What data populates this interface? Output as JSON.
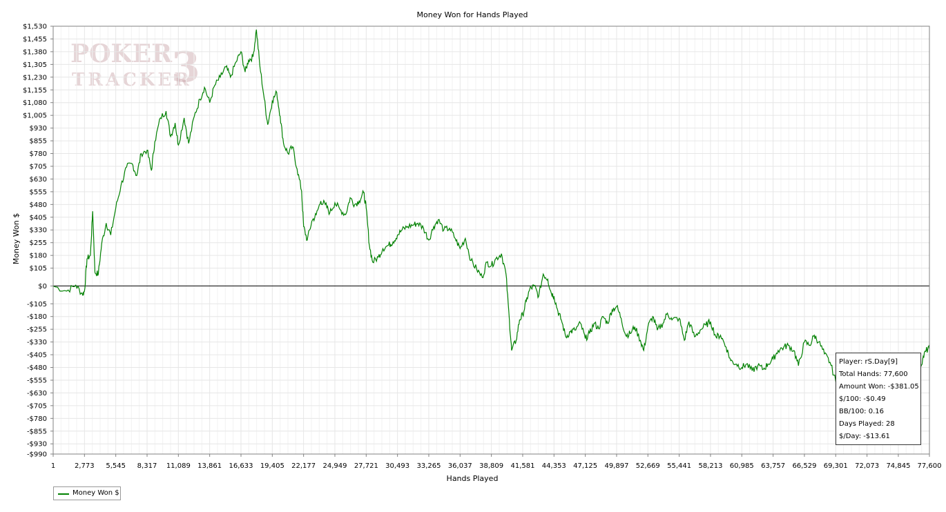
{
  "chart_data": {
    "type": "line",
    "title": "Money Won for Hands Played",
    "xlabel": "Hands Played",
    "ylabel": "Money Won $",
    "xlim": [
      1,
      77600
    ],
    "ylim": [
      -990,
      1530
    ],
    "x_ticks": [
      1,
      2773,
      5545,
      8317,
      11089,
      13861,
      16633,
      19405,
      22177,
      24949,
      27721,
      30493,
      33265,
      36037,
      38809,
      41581,
      44353,
      47125,
      49897,
      52669,
      55441,
      58213,
      60985,
      63757,
      66529,
      69301,
      72073,
      74845,
      77600
    ],
    "x_tick_labels": [
      "1",
      "2,773",
      "5,545",
      "8,317",
      "11,089",
      "13,861",
      "16,633",
      "19,405",
      "22,177",
      "24,949",
      "27,721",
      "30,493",
      "33,265",
      "36,037",
      "38,809",
      "41,581",
      "44,353",
      "47,125",
      "49,897",
      "52,669",
      "55,441",
      "58,213",
      "60,985",
      "63,757",
      "66,529",
      "69,301",
      "72,073",
      "74,845",
      "77,600"
    ],
    "y_ticks": [
      1530,
      1455,
      1380,
      1305,
      1230,
      1155,
      1080,
      1005,
      930,
      855,
      780,
      705,
      630,
      555,
      480,
      405,
      330,
      255,
      180,
      105,
      0,
      -105,
      -180,
      -255,
      -330,
      -405,
      -480,
      -555,
      -630,
      -705,
      -780,
      -855,
      -930,
      -990
    ],
    "y_tick_labels": [
      "$1,530",
      "$1,455",
      "$1,380",
      "$1,305",
      "$1,230",
      "$1,155",
      "$1,080",
      "$1,005",
      "$930",
      "$855",
      "$780",
      "$705",
      "$630",
      "$555",
      "$480",
      "$405",
      "$330",
      "$255",
      "$180",
      "$105",
      "$0",
      "-$105",
      "-$180",
      "-$255",
      "-$330",
      "-$405",
      "-$480",
      "-$555",
      "-$630",
      "-$705",
      "-$780",
      "-$855",
      "-$930",
      "-$990"
    ],
    "grid": true,
    "legend_position": "bottom-left",
    "series": [
      {
        "name": "Money Won $",
        "color": "#008000",
        "points": [
          [
            1,
            0
          ],
          [
            1200,
            -30
          ],
          [
            2000,
            5
          ],
          [
            2600,
            -50
          ],
          [
            2773,
            -30
          ],
          [
            3000,
            160
          ],
          [
            3300,
            180
          ],
          [
            3500,
            440
          ],
          [
            3700,
            80
          ],
          [
            4000,
            70
          ],
          [
            4300,
            250
          ],
          [
            4700,
            370
          ],
          [
            5100,
            300
          ],
          [
            5545,
            460
          ],
          [
            6000,
            590
          ],
          [
            6500,
            700
          ],
          [
            7000,
            720
          ],
          [
            7400,
            650
          ],
          [
            7800,
            780
          ],
          [
            8317,
            800
          ],
          [
            8700,
            680
          ],
          [
            9000,
            850
          ],
          [
            9500,
            990
          ],
          [
            10000,
            1030
          ],
          [
            10400,
            880
          ],
          [
            10800,
            960
          ],
          [
            11089,
            830
          ],
          [
            11600,
            990
          ],
          [
            12000,
            840
          ],
          [
            12500,
            1000
          ],
          [
            13000,
            1100
          ],
          [
            13400,
            1170
          ],
          [
            13861,
            1080
          ],
          [
            14300,
            1180
          ],
          [
            14800,
            1230
          ],
          [
            15300,
            1290
          ],
          [
            15700,
            1230
          ],
          [
            16200,
            1320
          ],
          [
            16633,
            1380
          ],
          [
            17000,
            1260
          ],
          [
            17300,
            1330
          ],
          [
            17700,
            1350
          ],
          [
            18000,
            1510
          ],
          [
            18300,
            1300
          ],
          [
            18700,
            1100
          ],
          [
            19000,
            950
          ],
          [
            19405,
            1090
          ],
          [
            19800,
            1140
          ],
          [
            20100,
            1000
          ],
          [
            20400,
            840
          ],
          [
            20800,
            780
          ],
          [
            21200,
            820
          ],
          [
            21600,
            690
          ],
          [
            22000,
            560
          ],
          [
            22177,
            350
          ],
          [
            22500,
            270
          ],
          [
            22900,
            380
          ],
          [
            23300,
            420
          ],
          [
            23700,
            500
          ],
          [
            24100,
            480
          ],
          [
            24500,
            430
          ],
          [
            24949,
            490
          ],
          [
            25400,
            450
          ],
          [
            25900,
            420
          ],
          [
            26300,
            520
          ],
          [
            26700,
            480
          ],
          [
            27100,
            500
          ],
          [
            27500,
            550
          ],
          [
            27721,
            460
          ],
          [
            28000,
            240
          ],
          [
            28300,
            140
          ],
          [
            28800,
            170
          ],
          [
            29200,
            220
          ],
          [
            29700,
            240
          ],
          [
            30100,
            260
          ],
          [
            30493,
            300
          ],
          [
            30900,
            330
          ],
          [
            31400,
            350
          ],
          [
            31900,
            360
          ],
          [
            32300,
            370
          ],
          [
            32800,
            340
          ],
          [
            33265,
            270
          ],
          [
            33700,
            350
          ],
          [
            34100,
            390
          ],
          [
            34600,
            330
          ],
          [
            35100,
            340
          ],
          [
            35600,
            280
          ],
          [
            36037,
            220
          ],
          [
            36500,
            280
          ],
          [
            37000,
            150
          ],
          [
            37500,
            100
          ],
          [
            38000,
            50
          ],
          [
            38400,
            140
          ],
          [
            38809,
            120
          ],
          [
            39200,
            160
          ],
          [
            39700,
            190
          ],
          [
            40100,
            70
          ],
          [
            40400,
            -200
          ],
          [
            40600,
            -380
          ],
          [
            41000,
            -320
          ],
          [
            41300,
            -200
          ],
          [
            41581,
            -170
          ],
          [
            41900,
            -90
          ],
          [
            42200,
            -20
          ],
          [
            42600,
            0
          ],
          [
            43000,
            -60
          ],
          [
            43400,
            70
          ],
          [
            43800,
            40
          ],
          [
            44100,
            -40
          ],
          [
            44353,
            -60
          ],
          [
            44700,
            -150
          ],
          [
            45000,
            -200
          ],
          [
            45400,
            -300
          ],
          [
            45800,
            -270
          ],
          [
            46200,
            -260
          ],
          [
            46700,
            -220
          ],
          [
            47125,
            -310
          ],
          [
            47500,
            -280
          ],
          [
            47900,
            -220
          ],
          [
            48300,
            -250
          ],
          [
            48700,
            -180
          ],
          [
            49100,
            -220
          ],
          [
            49500,
            -140
          ],
          [
            49897,
            -120
          ],
          [
            50300,
            -190
          ],
          [
            50700,
            -290
          ],
          [
            51100,
            -280
          ],
          [
            51500,
            -240
          ],
          [
            52000,
            -320
          ],
          [
            52300,
            -380
          ],
          [
            52669,
            -240
          ],
          [
            53100,
            -180
          ],
          [
            53500,
            -260
          ],
          [
            54000,
            -220
          ],
          [
            54400,
            -160
          ],
          [
            54800,
            -200
          ],
          [
            55441,
            -190
          ],
          [
            55900,
            -320
          ],
          [
            56300,
            -210
          ],
          [
            56800,
            -300
          ],
          [
            57300,
            -260
          ],
          [
            57800,
            -230
          ],
          [
            58213,
            -210
          ],
          [
            58700,
            -300
          ],
          [
            59100,
            -290
          ],
          [
            59600,
            -360
          ],
          [
            60000,
            -440
          ],
          [
            60500,
            -460
          ],
          [
            60985,
            -480
          ],
          [
            61400,
            -460
          ],
          [
            61900,
            -500
          ],
          [
            62400,
            -470
          ],
          [
            62900,
            -490
          ],
          [
            63300,
            -460
          ],
          [
            63757,
            -430
          ],
          [
            64200,
            -380
          ],
          [
            64700,
            -360
          ],
          [
            65100,
            -350
          ],
          [
            65600,
            -380
          ],
          [
            66000,
            -470
          ],
          [
            66529,
            -330
          ],
          [
            67000,
            -350
          ],
          [
            67400,
            -290
          ],
          [
            67800,
            -330
          ],
          [
            68300,
            -400
          ],
          [
            68800,
            -450
          ],
          [
            69301,
            -560
          ],
          [
            69700,
            -530
          ],
          [
            70200,
            -470
          ],
          [
            70600,
            -440
          ],
          [
            71000,
            -450
          ],
          [
            71500,
            -480
          ],
          [
            72073,
            -470
          ],
          [
            72500,
            -400
          ],
          [
            73000,
            -440
          ],
          [
            73500,
            -470
          ],
          [
            74000,
            -450
          ],
          [
            74500,
            -480
          ],
          [
            74845,
            -460
          ],
          [
            75300,
            -440
          ],
          [
            75800,
            -470
          ],
          [
            76200,
            -460
          ],
          [
            76700,
            -500
          ],
          [
            77000,
            -430
          ],
          [
            77300,
            -380
          ],
          [
            77600,
            -370
          ]
        ]
      }
    ]
  },
  "info_box": {
    "player": "Player: rS.Day[9]",
    "total_hands": "Total Hands: 77,600",
    "amount_won": "Amount Won: -$381.05",
    "per_100": "$/100: -$0.49",
    "bb_per_100": "BB/100: 0.16",
    "days_played": "Days Played: 28",
    "per_day": "$/Day: -$13.61"
  },
  "watermark": {
    "line1": "POKER",
    "number": "3",
    "line2": "TRACKER"
  }
}
